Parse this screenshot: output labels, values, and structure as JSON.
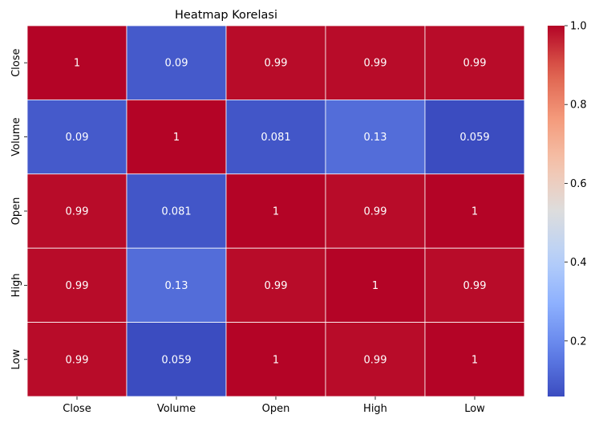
{
  "chart_data": {
    "type": "heatmap",
    "title": "Heatmap Korelasi",
    "xlabel": "",
    "ylabel": "",
    "x_categories": [
      "Close",
      "Volume",
      "Open",
      "High",
      "Low"
    ],
    "y_categories": [
      "Close",
      "Volume",
      "Open",
      "High",
      "Low"
    ],
    "values": [
      [
        1,
        0.09,
        0.99,
        0.99,
        0.99
      ],
      [
        0.09,
        1,
        0.081,
        0.13,
        0.059
      ],
      [
        0.99,
        0.081,
        1,
        0.99,
        1
      ],
      [
        0.99,
        0.13,
        0.99,
        1,
        0.99
      ],
      [
        0.99,
        0.059,
        1,
        0.99,
        1
      ]
    ],
    "annotations": [
      [
        "1",
        "0.09",
        "0.99",
        "0.99",
        "0.99"
      ],
      [
        "0.09",
        "1",
        "0.081",
        "0.13",
        "0.059"
      ],
      [
        "0.99",
        "0.081",
        "1",
        "0.99",
        "1"
      ],
      [
        "0.99",
        "0.13",
        "0.99",
        "1",
        "0.99"
      ],
      [
        "0.99",
        "0.059",
        "1",
        "0.99",
        "1"
      ]
    ],
    "colormap": "coolwarm",
    "vmin": 0.059,
    "vmax": 1.0,
    "colorbar_ticks": [
      0.2,
      0.4,
      0.6,
      0.8,
      1.0
    ],
    "colorbar_tick_labels": [
      "0.2",
      "0.4",
      "0.6",
      "0.8",
      "1.0"
    ],
    "cell_border_color": "#ffffff",
    "annotation_color": "#ffffff"
  }
}
